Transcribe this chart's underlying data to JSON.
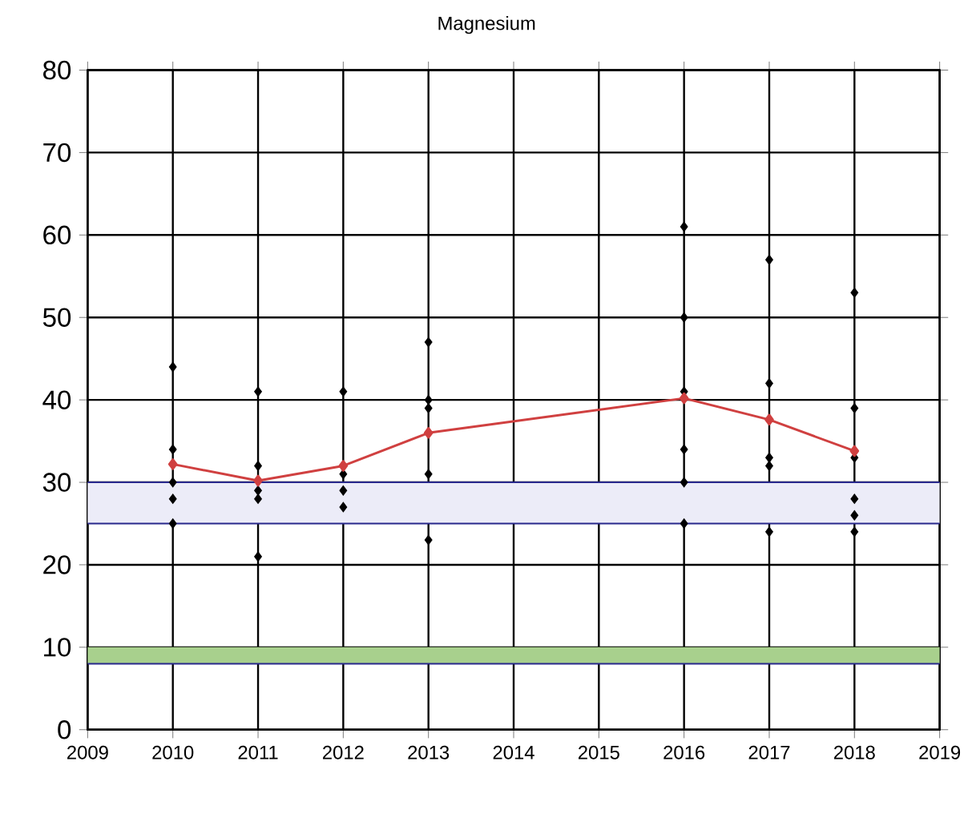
{
  "chart_data": {
    "type": "scatter",
    "title": "Magnesium",
    "series": [
      {
        "type": "scatter",
        "color": "#000000",
        "marker": "diamond",
        "x": [
          2010,
          2010,
          2010,
          2010,
          2010,
          2011,
          2011,
          2011,
          2011,
          2011,
          2012,
          2012,
          2012,
          2012,
          2013,
          2013,
          2013,
          2013,
          2013,
          2016,
          2016,
          2016,
          2016,
          2016,
          2016,
          2017,
          2017,
          2017,
          2017,
          2017,
          2018,
          2018,
          2018,
          2018,
          2018,
          2018
        ],
        "values": [
          44,
          34,
          30,
          28,
          25,
          41,
          32,
          29,
          28,
          21,
          41,
          31,
          29,
          27,
          47,
          40,
          39,
          31,
          23,
          61,
          50,
          41,
          34,
          30,
          25,
          57,
          42,
          33,
          32,
          24,
          53,
          39,
          33,
          28,
          26,
          24
        ]
      },
      {
        "type": "line",
        "color": "#d04040",
        "marker": "diamond",
        "x": [
          2010,
          2011,
          2012,
          2013,
          2016,
          2017,
          2018
        ],
        "values": [
          32.2,
          30.2,
          32,
          36,
          40.2,
          37.6,
          33.8
        ]
      }
    ],
    "xlim": [
      2009,
      2019
    ],
    "xticks": [
      2009,
      2010,
      2011,
      2012,
      2013,
      2014,
      2015,
      2016,
      2017,
      2018,
      2019
    ],
    "ylim": [
      0,
      80
    ],
    "yticks": [
      0,
      10,
      20,
      30,
      40,
      50,
      60,
      70,
      80
    ],
    "grid": true,
    "ref_lines": [
      {
        "axis": "y",
        "value": 30,
        "color": "#28288c"
      },
      {
        "axis": "y",
        "value": 25,
        "color": "#28288c"
      },
      {
        "axis": "y",
        "value": 8,
        "color": "#28288c"
      }
    ],
    "bands": [
      {
        "axis": "y",
        "from": 25,
        "to": 30,
        "color": "#ececf8"
      },
      {
        "axis": "y",
        "from": 8,
        "to": 10,
        "color": "#a8d08d"
      }
    ]
  }
}
